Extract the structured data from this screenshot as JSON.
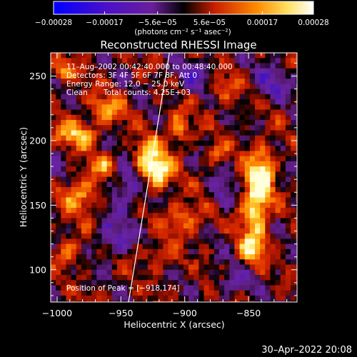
{
  "chart_data": {
    "type": "heatmap",
    "title": "Reconstructed RHESSI Image",
    "xlabel": "Heliocentric X (arcsec)",
    "ylabel": "Heliocentric Y (arcsec)",
    "xlim": [
      -1005,
      -812
    ],
    "ylim": [
      75,
      268
    ],
    "x_ticks": [
      -1000,
      -950,
      -900,
      -850
    ],
    "x_tick_labels": [
      "−1000",
      "−950",
      "−900",
      "−850"
    ],
    "y_ticks": [
      100,
      150,
      200,
      250
    ],
    "y_tick_labels": [
      "100",
      "150",
      "200",
      "250"
    ],
    "colorbar": {
      "range": [
        -0.00028,
        0.00028
      ],
      "ticks": [
        -0.00028,
        -0.00017,
        -5.6e-05,
        5.6e-05,
        0.00017,
        0.00028
      ],
      "tick_labels": [
        "−0.00028",
        "−0.00017",
        "−5.6e−05",
        "5.6e−05",
        "0.00017",
        "0.00028"
      ],
      "unit_label": "(photons cm⁻² s⁻¹ asec⁻²)",
      "colors": [
        "#0000ff",
        "#6a1fb0",
        "#000000",
        "#c81e00",
        "#ff9a00",
        "#ffff8a",
        "#ffffff"
      ]
    },
    "annotations": {
      "time_range": "11–Aug–2002 00:42:40.000 to 00:48:40.000",
      "detectors": "Detectors: 3F 4F 5F 6F 7F 8F, Att 0",
      "energy": "Energy Range: 12.0 − 25.0 keV",
      "method": "Clean",
      "counts": "Total counts: 4.25E+03",
      "peak": "Position of Peak = [−918,174]"
    },
    "limb_line": [
      [
        -944,
        75
      ],
      [
        -912,
        268
      ]
    ],
    "bright_regions": [
      {
        "x": -928,
        "y": 183,
        "sx": 8,
        "sy": 12,
        "amp": 1.0
      },
      {
        "x": -918,
        "y": 174,
        "sx": 6,
        "sy": 8,
        "amp": 0.7
      },
      {
        "x": -845,
        "y": 150,
        "sx": 7,
        "sy": 22,
        "amp": 0.95
      },
      {
        "x": -838,
        "y": 175,
        "sx": 6,
        "sy": 14,
        "amp": 0.75
      },
      {
        "x": -848,
        "y": 115,
        "sx": 8,
        "sy": 8,
        "amp": 0.55
      },
      {
        "x": -985,
        "y": 205,
        "sx": 12,
        "sy": 8,
        "amp": 0.7
      },
      {
        "x": -982,
        "y": 158,
        "sx": 12,
        "sy": 10,
        "amp": 0.6
      },
      {
        "x": -965,
        "y": 180,
        "sx": 8,
        "sy": 6,
        "amp": 0.5
      },
      {
        "x": -960,
        "y": 225,
        "sx": 10,
        "sy": 7,
        "amp": 0.55
      },
      {
        "x": -905,
        "y": 210,
        "sx": 6,
        "sy": 10,
        "amp": 0.6
      },
      {
        "x": -900,
        "y": 140,
        "sx": 10,
        "sy": 8,
        "amp": 0.55
      },
      {
        "x": -875,
        "y": 190,
        "sx": 6,
        "sy": 6,
        "amp": 0.45
      },
      {
        "x": -990,
        "y": 115,
        "sx": 8,
        "sy": 8,
        "amp": 0.45
      },
      {
        "x": -920,
        "y": 110,
        "sx": 8,
        "sy": 6,
        "amp": 0.45
      },
      {
        "x": -870,
        "y": 240,
        "sx": 8,
        "sy": 8,
        "amp": 0.4
      },
      {
        "x": -995,
        "y": 255,
        "sx": 8,
        "sy": 6,
        "amp": 0.5
      }
    ],
    "dark_regions": [
      {
        "x": -945,
        "y": 165,
        "sx": 10,
        "sy": 12,
        "amp": -0.55
      },
      {
        "x": -955,
        "y": 125,
        "sx": 10,
        "sy": 10,
        "amp": -0.45
      },
      {
        "x": -895,
        "y": 250,
        "sx": 12,
        "sy": 8,
        "amp": -0.4
      },
      {
        "x": -830,
        "y": 245,
        "sx": 10,
        "sy": 10,
        "amp": -0.4
      },
      {
        "x": -870,
        "y": 160,
        "sx": 6,
        "sy": 10,
        "amp": -0.35
      },
      {
        "x": -1000,
        "y": 175,
        "sx": 6,
        "sy": 10,
        "amp": -0.3
      },
      {
        "x": -860,
        "y": 90,
        "sx": 10,
        "sy": 8,
        "amp": -0.35
      }
    ]
  },
  "footer": {
    "timestamp": "30–Apr–2022 20:08"
  }
}
